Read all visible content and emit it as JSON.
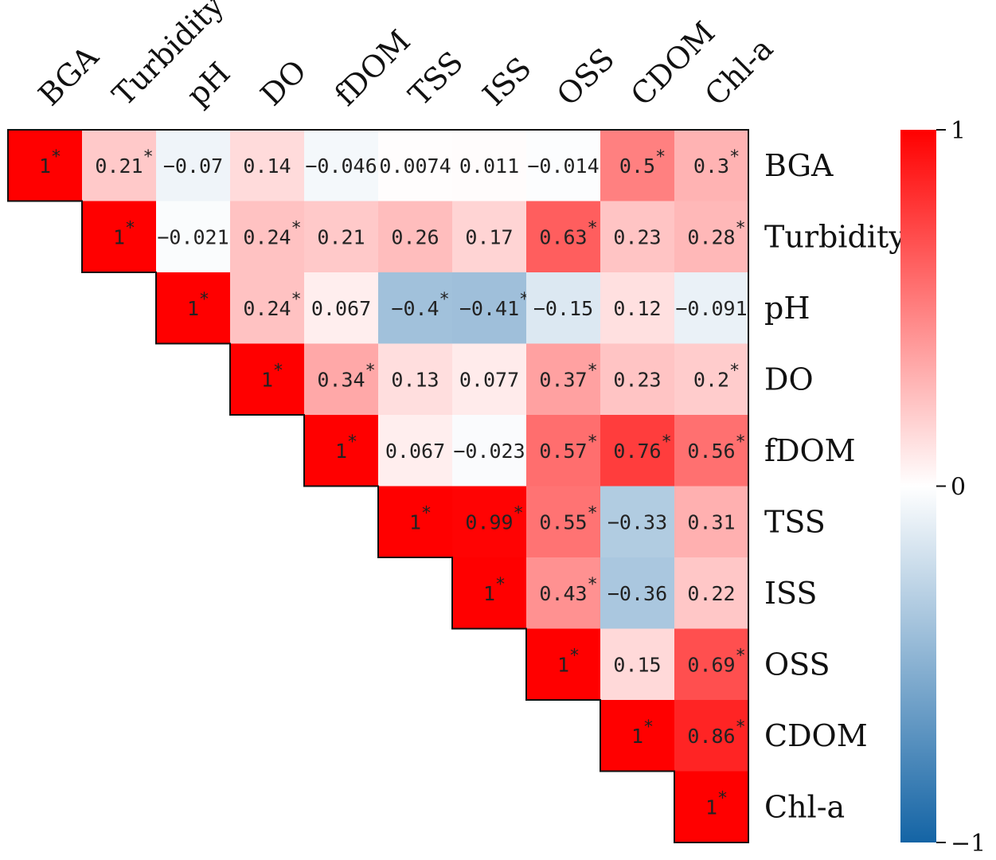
{
  "chart_data": {
    "type": "heatmap",
    "variables": [
      "BGA",
      "Turbidity",
      "pH",
      "DO",
      "fDOM",
      "TSS",
      "ISS",
      "OSS",
      "CDOM",
      "Chl-a"
    ],
    "cells": [
      [
        {
          "v": 1,
          "t": "1",
          "s": true
        },
        {
          "v": 0.21,
          "t": "0.21",
          "s": true
        },
        {
          "v": -0.07,
          "t": "-0.07",
          "s": false
        },
        {
          "v": 0.14,
          "t": "0.14",
          "s": false
        },
        {
          "v": -0.046,
          "t": "-0.046",
          "s": false
        },
        {
          "v": 0.0074,
          "t": "0.0074",
          "s": false
        },
        {
          "v": 0.011,
          "t": "0.011",
          "s": false
        },
        {
          "v": -0.014,
          "t": "-0.014",
          "s": false
        },
        {
          "v": 0.5,
          "t": "0.5",
          "s": true
        },
        {
          "v": 0.3,
          "t": "0.3",
          "s": true
        }
      ],
      [
        {
          "v": 1,
          "t": "1",
          "s": true
        },
        {
          "v": -0.021,
          "t": "-0.021",
          "s": false
        },
        {
          "v": 0.24,
          "t": "0.24",
          "s": true
        },
        {
          "v": 0.21,
          "t": "0.21",
          "s": false
        },
        {
          "v": 0.26,
          "t": "0.26",
          "s": false
        },
        {
          "v": 0.17,
          "t": "0.17",
          "s": false
        },
        {
          "v": 0.63,
          "t": "0.63",
          "s": true
        },
        {
          "v": 0.23,
          "t": "0.23",
          "s": false
        },
        {
          "v": 0.28,
          "t": "0.28",
          "s": true
        }
      ],
      [
        {
          "v": 1,
          "t": "1",
          "s": true
        },
        {
          "v": 0.24,
          "t": "0.24",
          "s": true
        },
        {
          "v": 0.067,
          "t": "0.067",
          "s": false
        },
        {
          "v": -0.4,
          "t": "-0.4",
          "s": true
        },
        {
          "v": -0.41,
          "t": "-0.41",
          "s": true
        },
        {
          "v": -0.15,
          "t": "-0.15",
          "s": false
        },
        {
          "v": 0.12,
          "t": "0.12",
          "s": false
        },
        {
          "v": -0.091,
          "t": "-0.091",
          "s": false
        }
      ],
      [
        {
          "v": 1,
          "t": "1",
          "s": true
        },
        {
          "v": 0.34,
          "t": "0.34",
          "s": true
        },
        {
          "v": 0.13,
          "t": "0.13",
          "s": false
        },
        {
          "v": 0.077,
          "t": "0.077",
          "s": false
        },
        {
          "v": 0.37,
          "t": "0.37",
          "s": true
        },
        {
          "v": 0.23,
          "t": "0.23",
          "s": false
        },
        {
          "v": 0.2,
          "t": "0.2",
          "s": true
        }
      ],
      [
        {
          "v": 1,
          "t": "1",
          "s": true
        },
        {
          "v": 0.067,
          "t": "0.067",
          "s": false
        },
        {
          "v": -0.023,
          "t": "-0.023",
          "s": false
        },
        {
          "v": 0.57,
          "t": "0.57",
          "s": true
        },
        {
          "v": 0.76,
          "t": "0.76",
          "s": true
        },
        {
          "v": 0.56,
          "t": "0.56",
          "s": true
        }
      ],
      [
        {
          "v": 1,
          "t": "1",
          "s": true
        },
        {
          "v": 0.99,
          "t": "0.99",
          "s": true
        },
        {
          "v": 0.55,
          "t": "0.55",
          "s": true
        },
        {
          "v": -0.33,
          "t": "-0.33",
          "s": false
        },
        {
          "v": 0.31,
          "t": "0.31",
          "s": false
        }
      ],
      [
        {
          "v": 1,
          "t": "1",
          "s": true
        },
        {
          "v": 0.43,
          "t": "0.43",
          "s": true
        },
        {
          "v": -0.36,
          "t": "-0.36",
          "s": false
        },
        {
          "v": 0.22,
          "t": "0.22",
          "s": false
        }
      ],
      [
        {
          "v": 1,
          "t": "1",
          "s": true
        },
        {
          "v": 0.15,
          "t": "0.15",
          "s": false
        },
        {
          "v": 0.69,
          "t": "0.69",
          "s": true
        }
      ],
      [
        {
          "v": 1,
          "t": "1",
          "s": true
        },
        {
          "v": 0.86,
          "t": "0.86",
          "s": true
        }
      ],
      [
        {
          "v": 1,
          "t": "1",
          "s": true
        }
      ]
    ],
    "significance_marker": "*",
    "colorbar": {
      "range": [
        -1,
        1
      ],
      "ticks": [
        {
          "value": 1,
          "label": "1"
        },
        {
          "value": 0,
          "label": "0"
        },
        {
          "value": -1,
          "label": "−1"
        }
      ],
      "colors": {
        "neg": "#1464a5",
        "mid": "#ffffff",
        "pos": "#ff0000"
      }
    }
  }
}
